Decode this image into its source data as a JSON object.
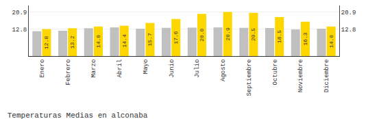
{
  "chart_data": {
    "type": "bar",
    "title": "Temperaturas Medias en alconaba",
    "categories": [
      "Enero",
      "Febrero",
      "Marzo",
      "Abril",
      "Mayo",
      "Junio",
      "Julio",
      "Agosto",
      "Septiembre",
      "Octubre",
      "Noviembre",
      "Diciembre"
    ],
    "series": [
      {
        "color": "#C0C0C0",
        "values": [
          11.8,
          12.0,
          13.2,
          13.6,
          13.0,
          13.4,
          13.5,
          13.6,
          13.4,
          13.3,
          12.6,
          13.0
        ]
      },
      {
        "color": "#FFD700",
        "values": [
          12.8,
          13.2,
          14.0,
          14.4,
          15.7,
          17.6,
          20.0,
          20.9,
          20.5,
          18.5,
          16.3,
          14.0
        ],
        "data_labels": true,
        "value_labels": [
          "12.8",
          "13.2",
          "14.0",
          "14.4",
          "15.7",
          "17.6",
          "20.0",
          "20.9",
          "20.5",
          "18.5",
          "16.3",
          "14.0"
        ]
      }
    ],
    "ylim": [
      0,
      24.0
    ],
    "yticks": [
      12.8,
      20.9
    ],
    "y2lim": [
      0,
      24.0
    ],
    "y2ticks": [
      12.8,
      20.9
    ],
    "grid": true
  }
}
